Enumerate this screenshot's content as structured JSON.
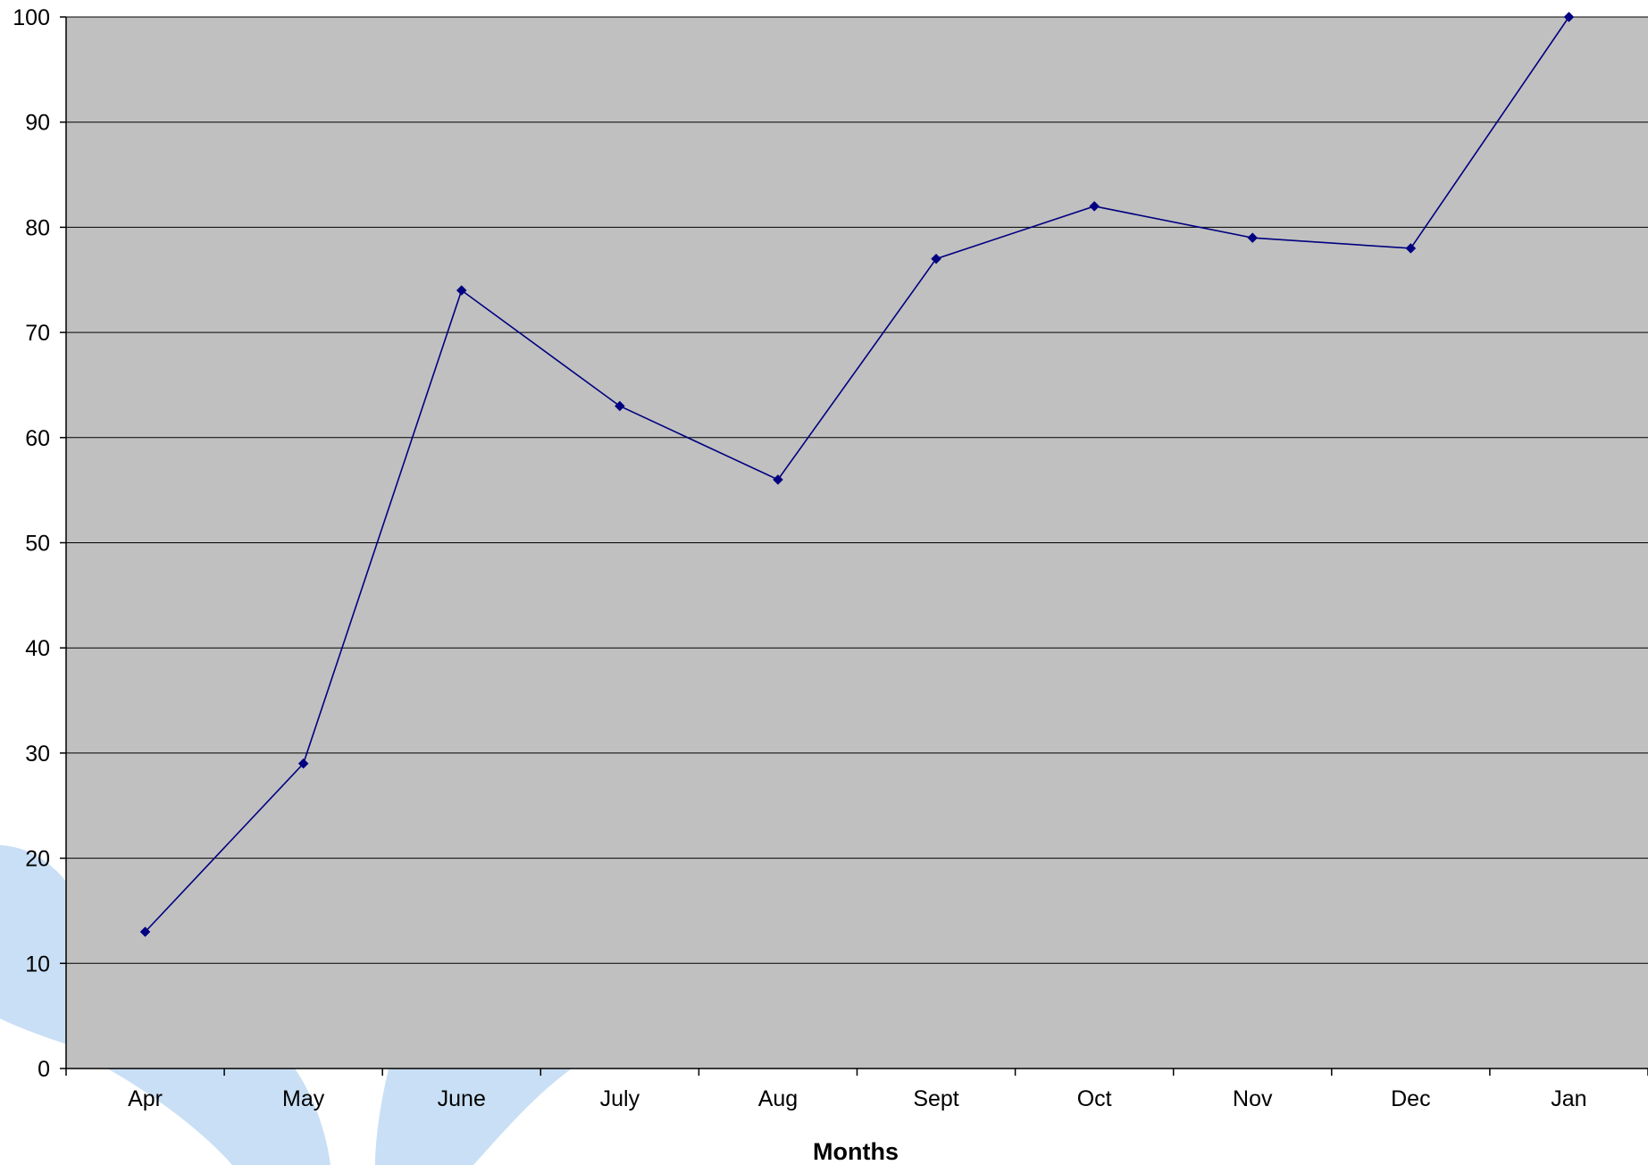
{
  "chart_data": {
    "type": "line",
    "title": "",
    "xlabel": "Months",
    "ylabel": "",
    "categories": [
      "Apr",
      "May",
      "June",
      "July",
      "Aug",
      "Sept",
      "Oct",
      "Nov",
      "Dec",
      "Jan"
    ],
    "series": [
      {
        "values": [
          13,
          29,
          74,
          63,
          56,
          77,
          82,
          79,
          78,
          100
        ]
      }
    ],
    "ylim": [
      0,
      100
    ],
    "yticks": [
      0,
      10,
      20,
      30,
      40,
      50,
      60,
      70,
      80,
      90,
      100
    ],
    "grid": true,
    "legend": "none",
    "marker": "diamond"
  },
  "colors": {
    "plot_background": "#c0c0c0",
    "gridline": "#000000",
    "series_line": "#000080",
    "marker": "#000080",
    "axis": "#000000",
    "background_decoration": "#c9dff5"
  }
}
